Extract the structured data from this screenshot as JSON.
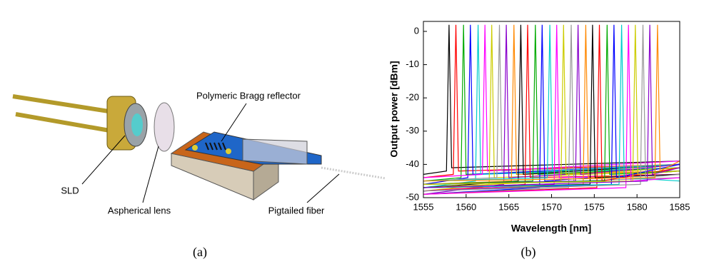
{
  "diagram": {
    "caption": "(a)",
    "labels": {
      "reflector": "Polymeric Bragg reflector",
      "source": "SLD",
      "lens": "Aspherical lens",
      "fiber": "Pigtailed fiber"
    }
  },
  "chart_data": {
    "type": "line",
    "caption": "(b)",
    "x_label": "Wavelength [nm]",
    "y_label": "Output power [dBm]",
    "xlim": [
      1555,
      1585
    ],
    "xticks": [
      1555,
      1560,
      1565,
      1570,
      1575,
      1580,
      1585
    ],
    "ylim": [
      -50,
      3
    ],
    "yticks": [
      0,
      -10,
      -20,
      -30,
      -40,
      -50
    ],
    "series": [
      {
        "color": "#000000",
        "x": [
          1555,
          1557.7,
          1558.0,
          1558.3,
          1585
        ],
        "values": [
          -43,
          -42,
          2,
          -41,
          -39
        ]
      },
      {
        "color": "#ff0000",
        "x": [
          1555,
          1558.5,
          1558.8,
          1559.1,
          1585
        ],
        "values": [
          -44,
          -43,
          2,
          -42,
          -40
        ]
      },
      {
        "color": "#00aa00",
        "x": [
          1555,
          1559.4,
          1559.7,
          1560.0,
          1585
        ],
        "values": [
          -45,
          -44,
          2,
          -43,
          -41
        ]
      },
      {
        "color": "#0000ff",
        "x": [
          1555,
          1560.2,
          1560.5,
          1560.8,
          1585
        ],
        "values": [
          -46,
          -44,
          2,
          -43,
          -40
        ]
      },
      {
        "color": "#00cccc",
        "x": [
          1555,
          1561.1,
          1561.4,
          1561.7,
          1585
        ],
        "values": [
          -47,
          -45,
          2,
          -43,
          -41
        ]
      },
      {
        "color": "#ff00ff",
        "x": [
          1555,
          1561.9,
          1562.2,
          1562.5,
          1585
        ],
        "values": [
          -44,
          -43,
          2,
          -42,
          -39
        ]
      },
      {
        "color": "#cccc00",
        "x": [
          1555,
          1562.7,
          1563.0,
          1563.3,
          1585
        ],
        "values": [
          -48,
          -46,
          2,
          -44,
          -42
        ]
      },
      {
        "color": "#999999",
        "x": [
          1555,
          1563.6,
          1563.9,
          1564.2,
          1585
        ],
        "values": [
          -45,
          -44,
          2,
          -42,
          -40
        ]
      },
      {
        "color": "#8800cc",
        "x": [
          1555,
          1564.4,
          1564.7,
          1565.0,
          1585
        ],
        "values": [
          -49,
          -46,
          2,
          -44,
          -41
        ]
      },
      {
        "color": "#ff8800",
        "x": [
          1555,
          1565.3,
          1565.6,
          1565.9,
          1585
        ],
        "values": [
          -46,
          -45,
          2,
          -43,
          -42
        ]
      },
      {
        "color": "#000000",
        "x": [
          1555,
          1566.1,
          1566.4,
          1566.7,
          1585
        ],
        "values": [
          -47,
          -45,
          2,
          -43,
          -40
        ]
      },
      {
        "color": "#ff0000",
        "x": [
          1555,
          1566.9,
          1567.2,
          1567.5,
          1585
        ],
        "values": [
          -48,
          -46,
          2,
          -44,
          -43
        ]
      },
      {
        "color": "#00aa00",
        "x": [
          1555,
          1567.8,
          1568.1,
          1568.4,
          1585
        ],
        "values": [
          -46,
          -45,
          2,
          -43,
          -41
        ]
      },
      {
        "color": "#0000ff",
        "x": [
          1555,
          1568.6,
          1568.9,
          1569.2,
          1585
        ],
        "values": [
          -49,
          -47,
          2,
          -45,
          -42
        ]
      },
      {
        "color": "#00cccc",
        "x": [
          1555,
          1569.5,
          1569.8,
          1570.1,
          1585
        ],
        "values": [
          -45,
          -44,
          2,
          -42,
          -40
        ]
      },
      {
        "color": "#ff00ff",
        "x": [
          1555,
          1570.3,
          1570.6,
          1570.9,
          1585
        ],
        "values": [
          -48,
          -46,
          2,
          -44,
          -43
        ]
      },
      {
        "color": "#cccc00",
        "x": [
          1555,
          1571.1,
          1571.4,
          1571.7,
          1585
        ],
        "values": [
          -47,
          -45,
          2,
          -43,
          -41
        ]
      },
      {
        "color": "#999999",
        "x": [
          1555,
          1572.0,
          1572.3,
          1572.6,
          1585
        ],
        "values": [
          -49,
          -47,
          2,
          -45,
          -44
        ]
      },
      {
        "color": "#8800cc",
        "x": [
          1555,
          1572.8,
          1573.1,
          1573.4,
          1585
        ],
        "values": [
          -46,
          -45,
          2,
          -43,
          -40
        ]
      },
      {
        "color": "#ff8800",
        "x": [
          1555,
          1573.7,
          1574.0,
          1574.3,
          1585
        ],
        "values": [
          -48,
          -46,
          2,
          -44,
          -42
        ]
      },
      {
        "color": "#000000",
        "x": [
          1555,
          1574.5,
          1574.8,
          1575.1,
          1585
        ],
        "values": [
          -47,
          -46,
          2,
          -44,
          -43
        ]
      },
      {
        "color": "#ff0000",
        "x": [
          1555,
          1575.3,
          1575.6,
          1575.9,
          1585
        ],
        "values": [
          -49,
          -47,
          2,
          -45,
          -41
        ]
      },
      {
        "color": "#00aa00",
        "x": [
          1555,
          1576.2,
          1576.5,
          1576.8,
          1585
        ],
        "values": [
          -46,
          -45,
          2,
          -43,
          -42
        ]
      },
      {
        "color": "#0000ff",
        "x": [
          1555,
          1577.0,
          1577.3,
          1577.6,
          1585
        ],
        "values": [
          -48,
          -46,
          2,
          -44,
          -40
        ]
      },
      {
        "color": "#00cccc",
        "x": [
          1555,
          1577.9,
          1578.2,
          1578.5,
          1585
        ],
        "values": [
          -47,
          -46,
          2,
          -44,
          -45
        ]
      },
      {
        "color": "#ff00ff",
        "x": [
          1555,
          1578.7,
          1579.0,
          1579.3,
          1585
        ],
        "values": [
          -49,
          -47,
          2,
          -45,
          -44
        ]
      },
      {
        "color": "#cccc00",
        "x": [
          1555,
          1579.5,
          1579.8,
          1580.1,
          1585
        ],
        "values": [
          -46,
          -45,
          2,
          -43,
          -42
        ]
      },
      {
        "color": "#999999",
        "x": [
          1555,
          1580.4,
          1580.7,
          1581.0,
          1585
        ],
        "values": [
          -48,
          -46,
          2,
          -44,
          -43
        ]
      },
      {
        "color": "#8800cc",
        "x": [
          1555,
          1581.2,
          1581.5,
          1581.8,
          1585
        ],
        "values": [
          -47,
          -45,
          2,
          -43,
          -41
        ]
      },
      {
        "color": "#ff8800",
        "x": [
          1555,
          1582.1,
          1582.4,
          1582.7,
          1585
        ],
        "values": [
          -45,
          -44,
          2,
          -42,
          -39
        ]
      }
    ]
  }
}
